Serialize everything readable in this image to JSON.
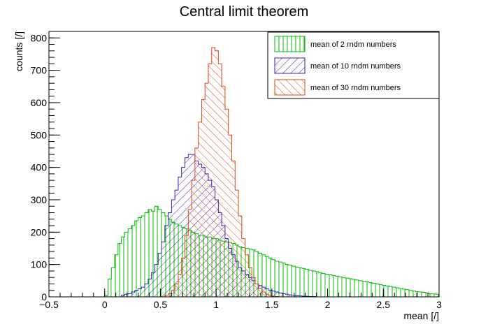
{
  "chart_data": {
    "type": "bar",
    "title": "Central limit theorem",
    "xlabel": "mean [/]",
    "ylabel": "counts [/]",
    "xlim": [
      -0.5,
      3
    ],
    "ylim": [
      0,
      820
    ],
    "x_ticks": [
      -0.5,
      0,
      0.5,
      1,
      1.5,
      2,
      2.5,
      3
    ],
    "x_tick_labels": [
      "−0.5",
      "0",
      "0.5",
      "1",
      "1.5",
      "2",
      "2.5",
      "3"
    ],
    "y_ticks": [
      0,
      100,
      200,
      300,
      400,
      500,
      600,
      700,
      800
    ],
    "y_tick_labels": [
      "0",
      "100",
      "200",
      "300",
      "400",
      "500",
      "600",
      "700",
      "800"
    ],
    "legend_position": "top-right",
    "bin_start": 0,
    "bin_width": 0.03,
    "series": [
      {
        "name": "mean of 2 rndm numbers",
        "color": "#00bb00",
        "hatch": "vertical",
        "values": [
          5,
          55,
          90,
          130,
          165,
          185,
          200,
          210,
          220,
          235,
          245,
          250,
          260,
          270,
          265,
          280,
          270,
          260,
          250,
          240,
          230,
          225,
          220,
          215,
          210,
          205,
          200,
          195,
          190,
          190,
          185,
          185,
          180,
          180,
          175,
          172,
          170,
          168,
          165,
          160,
          155,
          152,
          150,
          148,
          145,
          140,
          135,
          130,
          125,
          120,
          115,
          110,
          108,
          105,
          100,
          98,
          95,
          92,
          90,
          88,
          85,
          82,
          80,
          78,
          75,
          72,
          70,
          68,
          66,
          64,
          62,
          60,
          58,
          56,
          54,
          52,
          50,
          48,
          46,
          44,
          42,
          40,
          38,
          36,
          34,
          32,
          30,
          28,
          26,
          24,
          22,
          20,
          18,
          16,
          15,
          14,
          12,
          10,
          9,
          8
        ]
      },
      {
        "name": "mean of 10 rndm numbers",
        "color": "#3322bb",
        "hatch": "diagonal-right",
        "values": [
          0,
          0,
          0,
          0,
          0,
          5,
          8,
          10,
          15,
          20,
          25,
          30,
          40,
          55,
          75,
          100,
          135,
          170,
          220,
          260,
          300,
          330,
          370,
          400,
          430,
          440,
          440,
          420,
          410,
          400,
          380,
          360,
          340,
          300,
          260,
          220,
          180,
          150,
          130,
          110,
          90,
          80,
          70,
          60,
          50,
          40,
          35,
          30,
          25,
          20,
          18,
          15,
          12,
          10,
          8,
          6,
          5,
          4,
          3,
          2,
          2,
          1,
          1,
          0,
          0,
          0,
          0,
          0,
          0,
          0,
          0,
          0,
          0,
          0,
          0,
          0,
          0,
          0,
          0,
          0,
          0,
          0,
          0,
          0,
          0,
          0,
          0,
          0,
          0,
          0,
          0,
          0,
          0,
          0,
          0,
          0,
          0,
          0,
          0,
          0
        ]
      },
      {
        "name": "mean of 30 rndm numbers",
        "color": "#dd4411",
        "hatch": "diagonal-left",
        "values": [
          0,
          0,
          0,
          0,
          0,
          0,
          0,
          0,
          0,
          0,
          0,
          0,
          0,
          0,
          0,
          0,
          0,
          0,
          5,
          10,
          20,
          40,
          70,
          120,
          190,
          270,
          360,
          460,
          540,
          610,
          660,
          720,
          770,
          760,
          720,
          650,
          580,
          500,
          420,
          330,
          250,
          180,
          130,
          90,
          60,
          40,
          25,
          15,
          8,
          4,
          2,
          1,
          0,
          0,
          0,
          0,
          0,
          0,
          0,
          0,
          0,
          0,
          0,
          0,
          0,
          0,
          0,
          0,
          0,
          0,
          0,
          0,
          0,
          0,
          0,
          0,
          0,
          0,
          0,
          0,
          0,
          0,
          0,
          0,
          0,
          0,
          0,
          0,
          0,
          0,
          0,
          0,
          0,
          0,
          0,
          0,
          0,
          0,
          0,
          0
        ]
      }
    ]
  }
}
